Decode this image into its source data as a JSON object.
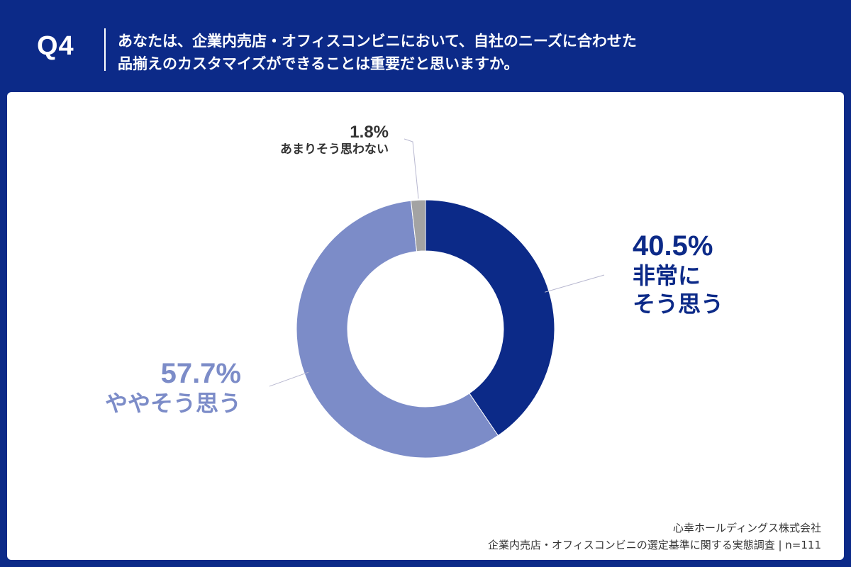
{
  "header": {
    "qnum": "Q4",
    "question_line1": "あなたは、企業内売店・オフィスコンビニにおいて、自社のニーズに合わせた",
    "question_line2": "品揃えのカスタマイズができることは重要だと思いますか。"
  },
  "footer": {
    "company": "心幸ホールディングス株式会社",
    "survey": "企業内売店・オフィスコンビニの選定基準に関する実態調査 | n=111"
  },
  "colors": {
    "background": "#0c2a88",
    "strong": "#0c2a88",
    "medium": "#7c8cc8",
    "weak": "#a3a3a3"
  },
  "chart_data": {
    "type": "pie",
    "donut": true,
    "slices": [
      {
        "label": "非常にそう思う",
        "label_lines": [
          "非常に",
          "そう思う"
        ],
        "value": 40.5,
        "value_text": "40.5%",
        "color": "#0c2a88"
      },
      {
        "label": "ややそう思う",
        "label_lines": [
          "ややそう思う"
        ],
        "value": 57.7,
        "value_text": "57.7%",
        "color": "#7c8cc8"
      },
      {
        "label": "あまりそう思わない",
        "label_lines": [
          "あまりそう思わない"
        ],
        "value": 1.8,
        "value_text": "1.8%",
        "color": "#a3a3a3"
      }
    ]
  }
}
